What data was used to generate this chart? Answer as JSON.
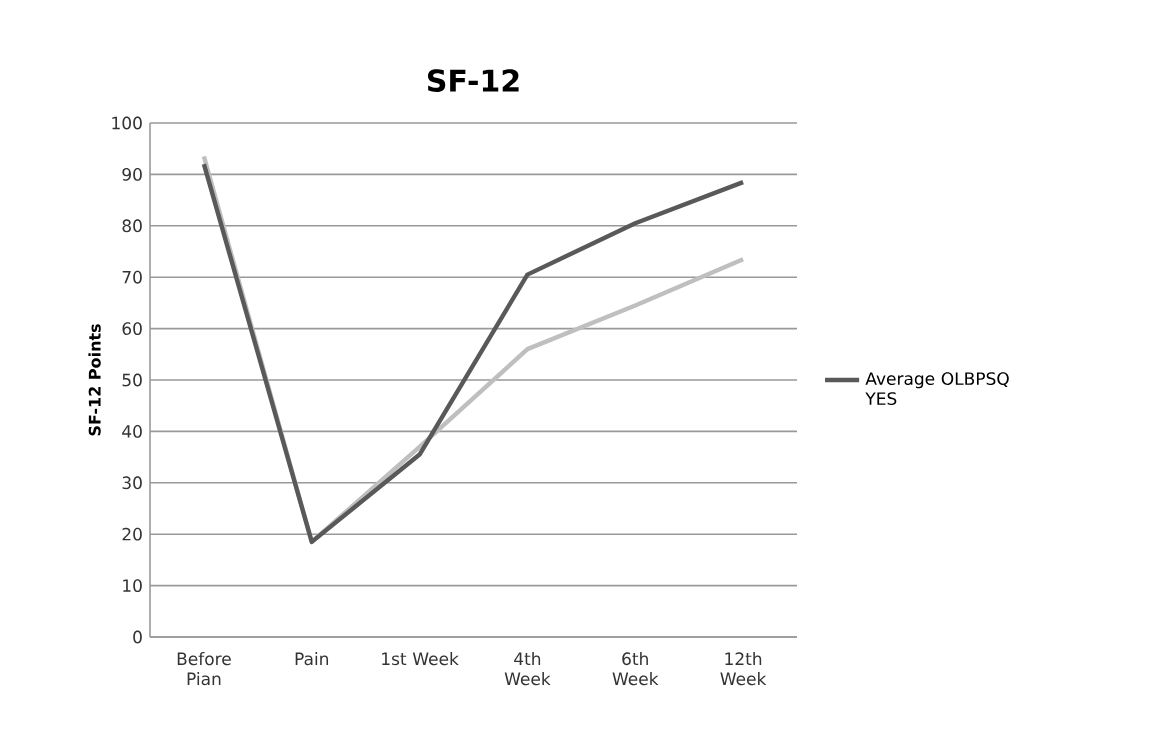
{
  "chart_data": {
    "type": "line",
    "title": "SF-12",
    "ylabel": "SF-12 Points",
    "categories": [
      "Before Pian",
      "Pain",
      "1st Week",
      "4th Week",
      "6th Week",
      "12th Week"
    ],
    "series": [
      {
        "name": "Average OLBPSQ YES",
        "color": "#595959",
        "values": [
          92,
          18.5,
          35.5,
          70.5,
          80.5,
          88.5
        ]
      },
      {
        "color": "#bfbfbf",
        "values": [
          93.5,
          18.5,
          37,
          56,
          64.5,
          73.5
        ]
      }
    ],
    "ylim": [
      0,
      100
    ],
    "yticks": [
      0,
      10,
      20,
      30,
      40,
      50,
      60,
      70,
      80,
      90,
      100
    ],
    "grid": "y",
    "legend": "right",
    "marker": "none",
    "line_style": "solid"
  }
}
